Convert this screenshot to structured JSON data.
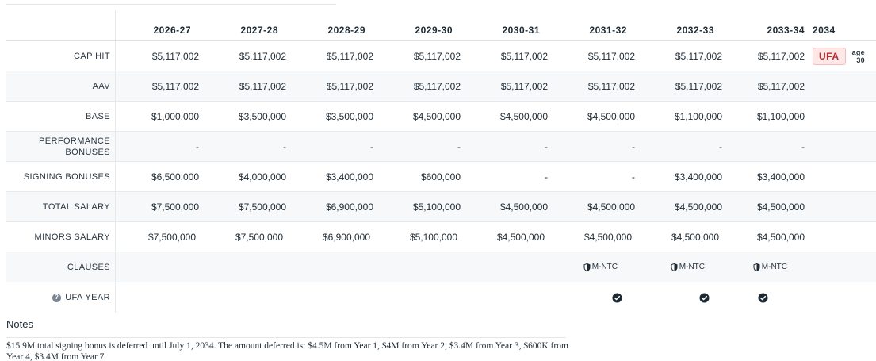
{
  "seasons": [
    "2026-27",
    "2027-28",
    "2028-29",
    "2029-30",
    "2030-31",
    "2031-32",
    "2032-33",
    "2033-34"
  ],
  "final_year": {
    "label": "2034",
    "status": "UFA",
    "age": "age 30",
    "status_color": "#c0262d"
  },
  "rows": {
    "cap_hit": {
      "label": "CAP HIT",
      "values": [
        "$5,117,002",
        "$5,117,002",
        "$5,117,002",
        "$5,117,002",
        "$5,117,002",
        "$5,117,002",
        "$5,117,002",
        "$5,117,002"
      ]
    },
    "aav": {
      "label": "AAV",
      "values": [
        "$5,117,002",
        "$5,117,002",
        "$5,117,002",
        "$5,117,002",
        "$5,117,002",
        "$5,117,002",
        "$5,117,002",
        "$5,117,002"
      ]
    },
    "base": {
      "label": "BASE",
      "values": [
        "$1,000,000",
        "$3,500,000",
        "$3,500,000",
        "$4,500,000",
        "$4,500,000",
        "$4,500,000",
        "$1,100,000",
        "$1,100,000"
      ]
    },
    "performance_bonuses": {
      "label_line1": "PERFORMANCE",
      "label_line2": "BONUSES",
      "values": [
        "-",
        "-",
        "-",
        "-",
        "-",
        "-",
        "-",
        "-"
      ]
    },
    "signing_bonuses": {
      "label": "SIGNING BONUSES",
      "values": [
        "$6,500,000",
        "$4,000,000",
        "$3,400,000",
        "$600,000",
        "-",
        "-",
        "$3,400,000",
        "$3,400,000"
      ]
    },
    "total_salary": {
      "label": "TOTAL SALARY",
      "values": [
        "$7,500,000",
        "$7,500,000",
        "$6,900,000",
        "$5,100,000",
        "$4,500,000",
        "$4,500,000",
        "$4,500,000",
        "$4,500,000"
      ]
    },
    "minors_salary": {
      "label": "MINORS SALARY",
      "values": [
        "$7,500,000",
        "$7,500,000",
        "$6,900,000",
        "$5,100,000",
        "$4,500,000",
        "$4,500,000",
        "$4,500,000",
        "$4,500,000"
      ]
    },
    "clauses": {
      "label": "CLAUSES",
      "values": [
        "",
        "",
        "",
        "",
        "",
        "M-NTC",
        "M-NTC",
        "M-NTC"
      ]
    },
    "ufa_year": {
      "label": "UFA YEAR",
      "help_icon": "question-circle-icon",
      "checked": [
        false,
        false,
        false,
        false,
        false,
        true,
        true,
        true
      ]
    }
  },
  "notes": {
    "title": "Notes",
    "text": "$15.9M total signing bonus is deferred until July 1, 2034. The amount deferred is: $4.5M from Year 1, $4M from Year 2, $3.4M from Year 3, $600K from Year 4, $3.4M from Year 7"
  }
}
